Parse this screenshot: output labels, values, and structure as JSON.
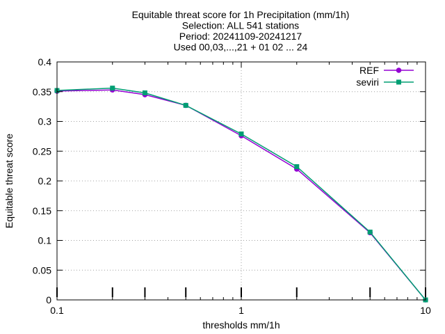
{
  "chart_data": {
    "type": "line",
    "title_lines": [
      "Equitable threat score  for 1h Precipitation (mm/1h)",
      "Selection: ALL    541 stations",
      "Period: 20241109-20241217",
      "Used 00,03,...,21 + 01 02 ... 24"
    ],
    "xlabel": "thresholds mm/1h",
    "ylabel": "Equitable threat score",
    "x_scale": "log",
    "xlim": [
      0.1,
      10
    ],
    "ylim": [
      0,
      0.4
    ],
    "x_ticks": [
      {
        "value": 0.1,
        "label": "0.1"
      },
      {
        "value": 1,
        "label": "1"
      },
      {
        "value": 10,
        "label": "10"
      }
    ],
    "y_ticks": [
      {
        "value": 0,
        "label": "0"
      },
      {
        "value": 0.05,
        "label": "0.05"
      },
      {
        "value": 0.1,
        "label": "0.1"
      },
      {
        "value": 0.15,
        "label": "0.15"
      },
      {
        "value": 0.2,
        "label": "0.2"
      },
      {
        "value": 0.25,
        "label": "0.25"
      },
      {
        "value": 0.3,
        "label": "0.3"
      },
      {
        "value": 0.35,
        "label": "0.35"
      },
      {
        "value": 0.4,
        "label": "0.4"
      }
    ],
    "grid": true,
    "legend_position": "top-right",
    "threshold_markers": [
      0.1,
      0.2,
      0.3,
      0.5,
      1,
      2,
      5,
      10
    ],
    "x": [
      0.1,
      0.2,
      0.3,
      0.5,
      1,
      2,
      5,
      10
    ],
    "series": [
      {
        "name": "REF",
        "color": "#9400d3",
        "marker": "circle",
        "values": [
          0.351,
          0.353,
          0.345,
          0.327,
          0.276,
          0.22,
          0.113,
          0.0
        ]
      },
      {
        "name": "seviri",
        "color": "#009e73",
        "marker": "square",
        "values": [
          0.352,
          0.356,
          0.348,
          0.327,
          0.279,
          0.224,
          0.114,
          0.0
        ]
      }
    ]
  }
}
